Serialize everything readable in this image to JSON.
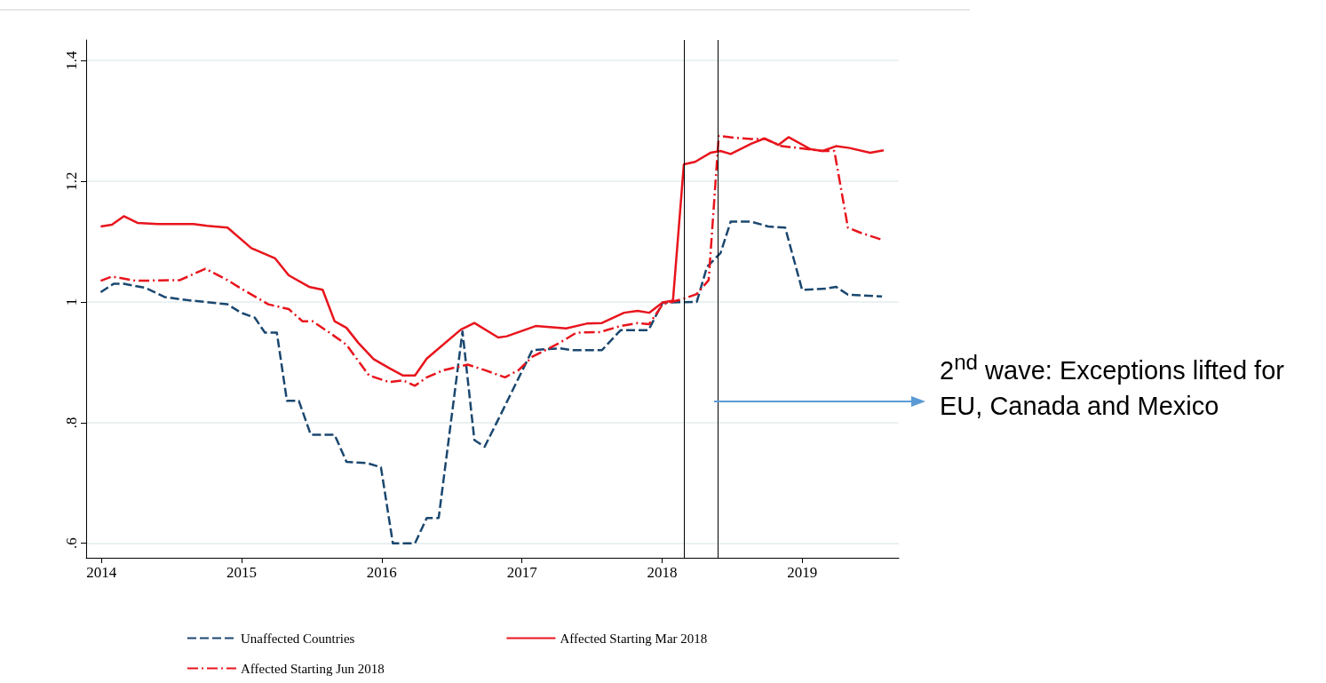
{
  "chart_data": {
    "type": "line",
    "annotations": [
      "2$^{nd}$ wave: Exceptions lifted for EU, Canada and Mexico"
    ],
    "xlim": [
      2013.89,
      2019.69
    ],
    "xticks": [
      2014,
      2015,
      2016,
      2017,
      2018,
      2019
    ],
    "ylim": [
      0.576,
      1.434
    ],
    "yticks": [
      {
        "value": 0.6,
        "label": ".6"
      },
      {
        "value": 0.8,
        "label": ".8"
      },
      1,
      1.2,
      1.4
    ],
    "grid": "y",
    "legend": "bottom",
    "marker": "none",
    "ref_lines": [
      {
        "axis": "x",
        "value": 2018.16,
        "color": "#000000"
      },
      {
        "axis": "x",
        "value": 2018.4,
        "color": "#000000"
      }
    ],
    "series": [
      {
        "name": "Unaffected Countries",
        "color": "#1a476f",
        "line_style": "dashed",
        "x": [
          2013.994,
          2014.086,
          2014.159,
          2014.317,
          2014.45,
          2014.608,
          2014.899,
          2014.996,
          2015.093,
          2015.166,
          2015.251,
          2015.323,
          2015.408,
          2015.493,
          2015.663,
          2015.748,
          2015.894,
          2015.994,
          2016.079,
          2016.237,
          2016.321,
          2016.406,
          2016.576,
          2016.661,
          2016.734,
          2016.831,
          2017.074,
          2017.268,
          2017.365,
          2017.571,
          2017.704,
          2017.903,
          2018.005,
          2018.248,
          2018.321,
          2018.418,
          2018.49,
          2018.636,
          2018.757,
          2018.879,
          2019.0,
          2019.17,
          2019.242,
          2019.327,
          2019.57
        ],
        "values": [
          1.016,
          1.03,
          1.03,
          1.023,
          1.008,
          1.003,
          0.996,
          0.982,
          0.974,
          0.949,
          0.949,
          0.836,
          0.836,
          0.78,
          0.78,
          0.735,
          0.733,
          0.726,
          0.6,
          0.6,
          0.642,
          0.642,
          0.951,
          0.771,
          0.76,
          0.805,
          0.92,
          0.923,
          0.92,
          0.92,
          0.953,
          0.953,
          0.999,
          1.0,
          1.058,
          1.081,
          1.133,
          1.133,
          1.125,
          1.123,
          1.02,
          1.022,
          1.025,
          1.012,
          1.009
        ]
      },
      {
        "name": "Affected Starting Mar 2018",
        "color": "#e8141c",
        "line_style": "solid",
        "x": [
          2013.994,
          2014.074,
          2014.159,
          2014.256,
          2014.402,
          2014.656,
          2014.753,
          2014.899,
          2015.069,
          2015.239,
          2015.336,
          2015.481,
          2015.578,
          2015.663,
          2015.748,
          2015.833,
          2015.942,
          2016.055,
          2016.152,
          2016.237,
          2016.321,
          2016.564,
          2016.661,
          2016.831,
          2016.892,
          2017.098,
          2017.316,
          2017.462,
          2017.571,
          2017.729,
          2017.826,
          2017.908,
          2018.005,
          2018.078,
          2018.156,
          2018.236,
          2018.345,
          2018.418,
          2018.49,
          2018.636,
          2018.733,
          2018.83,
          2018.903,
          2019.06,
          2019.145,
          2019.242,
          2019.339,
          2019.485,
          2019.582
        ],
        "values": [
          1.125,
          1.128,
          1.142,
          1.131,
          1.129,
          1.129,
          1.126,
          1.123,
          1.089,
          1.072,
          1.044,
          1.025,
          1.02,
          0.968,
          0.957,
          0.932,
          0.905,
          0.89,
          0.878,
          0.878,
          0.906,
          0.954,
          0.965,
          0.941,
          0.943,
          0.96,
          0.956,
          0.964,
          0.965,
          0.982,
          0.985,
          0.982,
          0.999,
          1.002,
          1.228,
          1.232,
          1.247,
          1.25,
          1.245,
          1.262,
          1.271,
          1.26,
          1.273,
          1.253,
          1.25,
          1.258,
          1.255,
          1.247,
          1.251
        ]
      },
      {
        "name": "Affected Starting Jun 2018",
        "color": "#e8141c",
        "line_style": "dashdot",
        "x": [
          2013.994,
          2014.074,
          2014.244,
          2014.559,
          2014.741,
          2014.899,
          2014.996,
          2015.19,
          2015.336,
          2015.433,
          2015.505,
          2015.627,
          2015.748,
          2015.909,
          2016.055,
          2016.152,
          2016.237,
          2016.321,
          2016.443,
          2016.613,
          2016.734,
          2016.88,
          2016.977,
          2017.074,
          2017.268,
          2017.389,
          2017.559,
          2017.704,
          2017.826,
          2017.908,
          2018.005,
          2018.151,
          2018.248,
          2018.333,
          2018.405,
          2018.515,
          2018.636,
          2018.733,
          2018.854,
          2018.975,
          2019.145,
          2019.23,
          2019.327,
          2019.412,
          2019.57
        ],
        "values": [
          1.035,
          1.042,
          1.035,
          1.036,
          1.055,
          1.036,
          1.022,
          0.996,
          0.988,
          0.968,
          0.968,
          0.949,
          0.929,
          0.878,
          0.867,
          0.87,
          0.861,
          0.875,
          0.887,
          0.896,
          0.887,
          0.875,
          0.887,
          0.909,
          0.932,
          0.949,
          0.95,
          0.96,
          0.965,
          0.963,
          0.996,
          1.005,
          1.013,
          1.036,
          1.275,
          1.272,
          1.27,
          1.27,
          1.258,
          1.255,
          1.25,
          1.25,
          1.123,
          1.115,
          1.103
        ]
      }
    ]
  }
}
